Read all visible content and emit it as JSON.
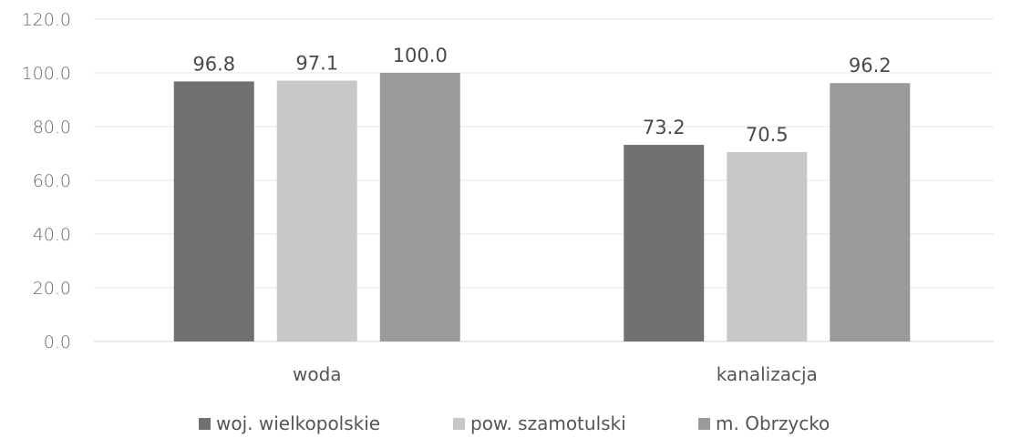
{
  "chart_data": {
    "type": "bar",
    "categories": [
      "woda",
      "kanalizacja"
    ],
    "series": [
      {
        "name": "woj. wielkopolskie",
        "values": [
          96.8,
          73.2
        ],
        "color": "#707070"
      },
      {
        "name": "pow. szamotulski",
        "values": [
          97.1,
          70.5
        ],
        "color": "#c8c8c8"
      },
      {
        "name": "m. Obrzycko",
        "values": [
          100.0,
          96.2
        ],
        "color": "#9a9a9a"
      }
    ],
    "y_ticks": [
      "0.0",
      "20.0",
      "40.0",
      "60.0",
      "80.0",
      "100.0",
      "120.0"
    ],
    "data_labels": [
      [
        "96.8",
        "73.2"
      ],
      [
        "97.1",
        "70.5"
      ],
      [
        "100.0",
        "96.2"
      ]
    ],
    "ylim": [
      0,
      120
    ],
    "grid": true,
    "legend_position": "bottom",
    "title": "",
    "xlabel": "",
    "ylabel": ""
  }
}
